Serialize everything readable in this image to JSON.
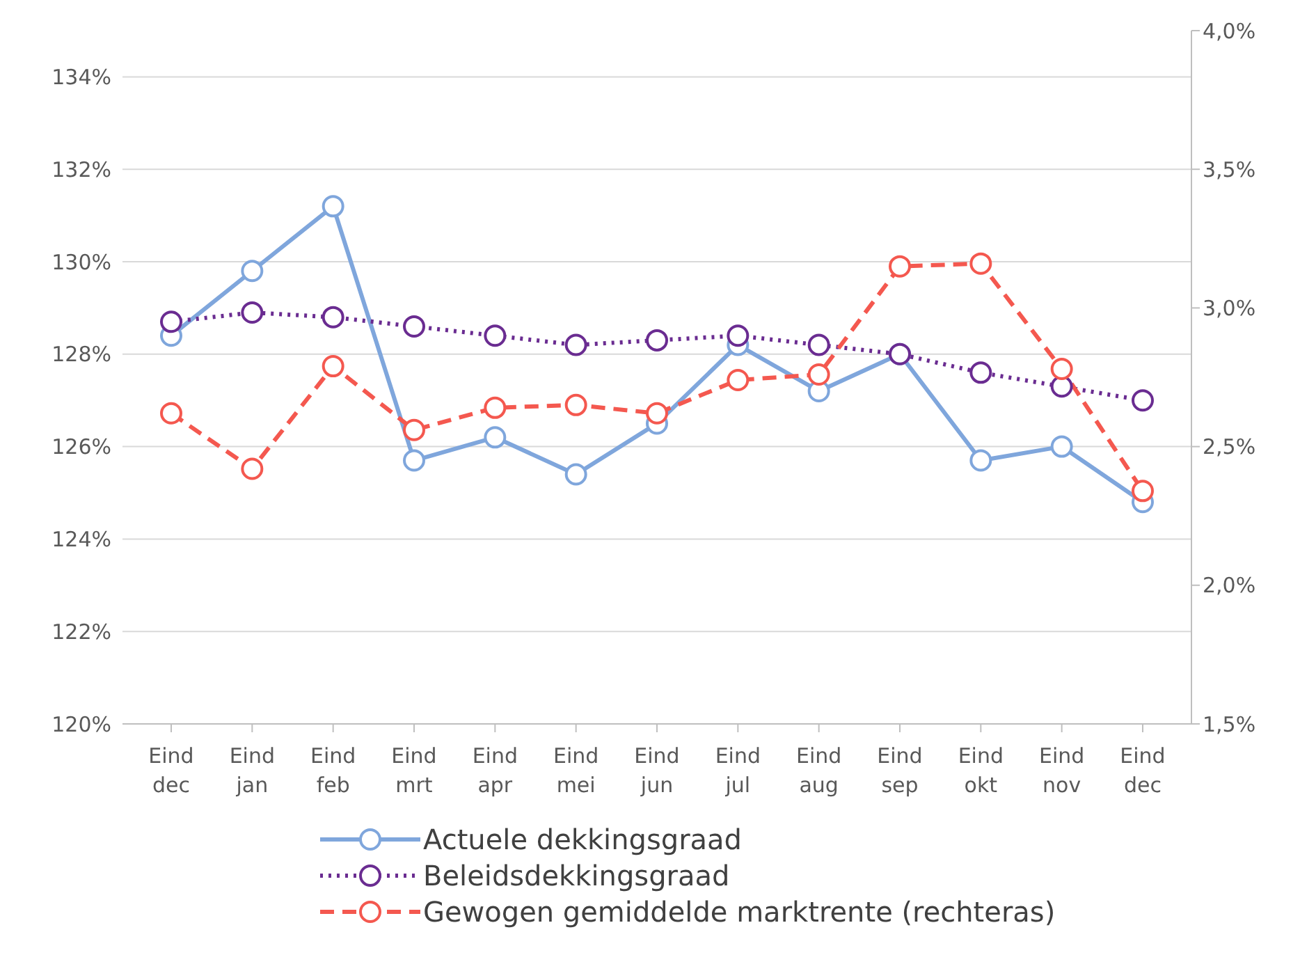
{
  "chart_data": {
    "type": "line",
    "categories": [
      "Eind dec",
      "Eind jan",
      "Eind feb",
      "Eind mrt",
      "Eind apr",
      "Eind mei",
      "Eind jun",
      "Eind jul",
      "Eind aug",
      "Eind sep",
      "Eind okt",
      "Eind nov",
      "Eind dec"
    ],
    "series": [
      {
        "name": "Actuele dekkingsgraad",
        "color": "#7fa6dc",
        "line_style": "solid",
        "values": [
          128.4,
          129.8,
          131.2,
          125.7,
          126.2,
          125.4,
          126.5,
          128.2,
          127.2,
          128.0,
          125.7,
          126.0,
          124.8
        ]
      },
      {
        "name": "Beleidsdekkingsgraad",
        "color": "#6a2c91",
        "line_style": "dotted",
        "values": [
          128.7,
          128.9,
          128.8,
          128.6,
          128.4,
          128.2,
          128.3,
          128.4,
          128.2,
          128.0,
          127.6,
          127.3,
          127.0
        ]
      },
      {
        "name": "Gewogen gemiddelde marktrente (rechteras)",
        "color": "#f4584f",
        "line_style": "dashed",
        "axis": "y2",
        "values": [
          2.62,
          2.42,
          2.79,
          2.56,
          2.64,
          2.65,
          2.62,
          2.74,
          2.76,
          3.15,
          3.16,
          2.78,
          2.34
        ]
      }
    ],
    "ylim": [
      120,
      135
    ],
    "yticks": [
      {
        "value": 120,
        "label": "120%"
      },
      {
        "value": 122,
        "label": "122%"
      },
      {
        "value": 124,
        "label": "124%"
      },
      {
        "value": 126,
        "label": "126%"
      },
      {
        "value": 128,
        "label": "128%"
      },
      {
        "value": 130,
        "label": "130%"
      },
      {
        "value": 132,
        "label": "132%"
      },
      {
        "value": 134,
        "label": "134%"
      }
    ],
    "y2lim": [
      1.5,
      4.0
    ],
    "y2ticks": [
      {
        "value": 1.5,
        "label": "1,5%"
      },
      {
        "value": 2.0,
        "label": "2,0%"
      },
      {
        "value": 2.5,
        "label": "2,5%"
      },
      {
        "value": 3.0,
        "label": "3,0%"
      },
      {
        "value": 3.5,
        "label": "3,5%"
      },
      {
        "value": 4.0,
        "label": "4,0%"
      }
    ],
    "grid": "y",
    "legend": "bottom",
    "marker": "circle"
  }
}
